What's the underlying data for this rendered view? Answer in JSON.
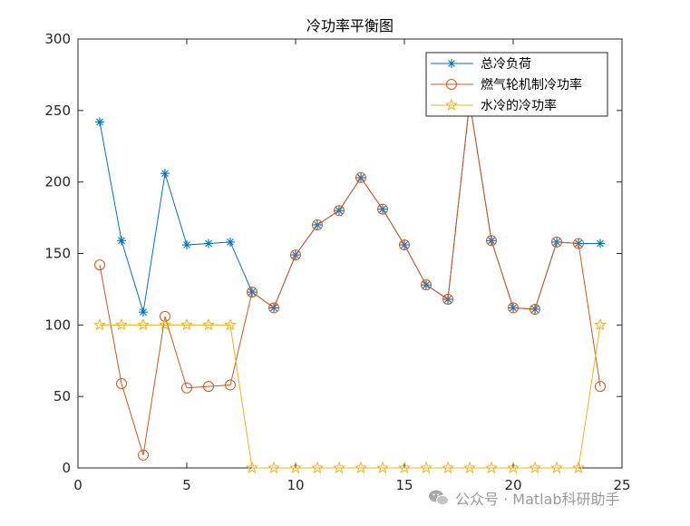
{
  "chart_data": {
    "type": "line",
    "title": "冷功率平衡图",
    "xlabel": "",
    "ylabel": "",
    "xlim": [
      0,
      25
    ],
    "ylim": [
      0,
      300
    ],
    "xticks": [
      0,
      5,
      10,
      15,
      20,
      25
    ],
    "yticks": [
      0,
      50,
      100,
      150,
      200,
      250,
      300
    ],
    "grid": false,
    "legend_position": "top-right",
    "x": [
      1,
      2,
      3,
      4,
      5,
      6,
      7,
      8,
      9,
      10,
      11,
      12,
      13,
      14,
      15,
      16,
      17,
      18,
      19,
      20,
      21,
      22,
      23,
      24
    ],
    "series": [
      {
        "name": "总冷负荷",
        "color": "#0072BD",
        "marker": "asterisk",
        "values": [
          242,
          159,
          109,
          206,
          156,
          157,
          158,
          123,
          112,
          149,
          170,
          180,
          203,
          181,
          156,
          128,
          118,
          256,
          159,
          112,
          111,
          158,
          157,
          157
        ]
      },
      {
        "name": "燃气轮机制冷功率",
        "color": "#D95319",
        "marker": "circle",
        "values": [
          142,
          59,
          9,
          106,
          56,
          57,
          58,
          123,
          112,
          149,
          170,
          180,
          203,
          181,
          156,
          128,
          118,
          256,
          159,
          112,
          111,
          158,
          157,
          57
        ]
      },
      {
        "name": "水冷的冷功率",
        "color": "#EDB120",
        "marker": "star",
        "values": [
          100,
          100,
          100,
          100,
          100,
          100,
          100,
          0,
          0,
          0,
          0,
          0,
          0,
          0,
          0,
          0,
          0,
          0,
          0,
          0,
          0,
          0,
          0,
          100
        ]
      }
    ]
  },
  "watermark": {
    "text": "公众号 · Matlab科研助手",
    "icon": "wechat-icon"
  }
}
